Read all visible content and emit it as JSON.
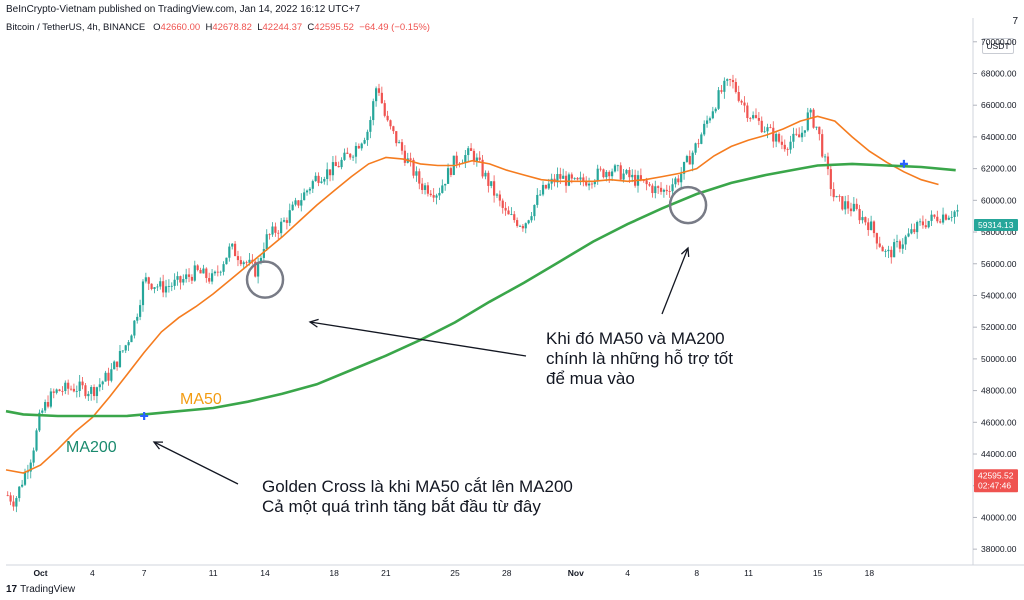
{
  "header": {
    "published": "BeInCrypto-Vietnam published on TradingView.com, Jan 14, 2022 16:12 UTC+7",
    "symbol": "Bitcoin / TetherUS, 4h, BINANCE",
    "open_label": "O",
    "open": "42660.00",
    "high_label": "H",
    "high": "42678.82",
    "low_label": "L",
    "low": "42244.37",
    "close_label": "C",
    "close": "42595.52",
    "change": "−64.49 (−0.15%)",
    "corner": "7",
    "currency": "USDT"
  },
  "colors": {
    "ma50": "#f57c1f",
    "ma200": "#3aa64a",
    "up": "#26a69a",
    "down": "#ef5350",
    "circle": "#787b86",
    "label_ma50": "#f39c12",
    "label_ma200": "#1a8a6e",
    "badge_red": "#ef5350",
    "badge_teal": "#26a69a"
  },
  "annotations": {
    "ma50_label": "MA50",
    "ma200_label": "MA200",
    "support_line1": "Khi đó MA50 và MA200",
    "support_line2": "chính là những hỗ trợ tốt",
    "support_line3": "để mua vào",
    "golden_line1": "Golden Cross là khi MA50 cắt lên MA200",
    "golden_line2": "Cả một quá trình tăng bắt đầu từ đây"
  },
  "price_badges": {
    "current": "42595.52",
    "countdown": "02:47:46",
    "ma_value": "59314.13"
  },
  "footer": {
    "logo_mark": "17",
    "logo_text": "TradingView"
  },
  "chart_data": {
    "type": "line",
    "y_ticks": [
      38000,
      40000,
      42000,
      44000,
      46000,
      48000,
      50000,
      52000,
      54000,
      56000,
      58000,
      60000,
      62000,
      64000,
      66000,
      68000,
      70000
    ],
    "y_tick_labels": [
      "38000.00",
      "40000.00",
      "42000.00",
      "44000.00",
      "46000.00",
      "48000.00",
      "50000.00",
      "52000.00",
      "54000.00",
      "56000.00",
      "58000.00",
      "60000.00",
      "62000.00",
      "64000.00",
      "66000.00",
      "68000.00",
      "70000.00"
    ],
    "ylim": [
      37000,
      71500
    ],
    "x_ticks": [
      {
        "label": "Oct",
        "day": 1
      },
      {
        "label": "4",
        "day": 4
      },
      {
        "label": "7",
        "day": 7
      },
      {
        "label": "11",
        "day": 11
      },
      {
        "label": "14",
        "day": 14
      },
      {
        "label": "18",
        "day": 18
      },
      {
        "label": "21",
        "day": 21
      },
      {
        "label": "25",
        "day": 25
      },
      {
        "label": "28",
        "day": 28
      },
      {
        "label": "Nov",
        "day": 32
      },
      {
        "label": "4",
        "day": 35
      },
      {
        "label": "8",
        "day": 39
      },
      {
        "label": "11",
        "day": 42
      },
      {
        "label": "15",
        "day": 46
      },
      {
        "label": "18",
        "day": 49
      }
    ],
    "xlim": [
      -1,
      55
    ],
    "price_path": [
      [
        -1,
        41500
      ],
      [
        -0.5,
        41000
      ],
      [
        0,
        42500
      ],
      [
        0.5,
        44000
      ],
      [
        1,
        46500
      ],
      [
        1.5,
        47500
      ],
      [
        2,
        48000
      ],
      [
        3,
        48200
      ],
      [
        4,
        48000
      ],
      [
        5,
        49000
      ],
      [
        5.5,
        50000
      ],
      [
        6,
        51000
      ],
      [
        6.5,
        52500
      ],
      [
        7,
        55000
      ],
      [
        8,
        54500
      ],
      [
        9,
        54800
      ],
      [
        10,
        55500
      ],
      [
        11,
        55000
      ],
      [
        12,
        57000
      ],
      [
        13,
        56000
      ],
      [
        13.5,
        55500
      ],
      [
        14,
        57500
      ],
      [
        15,
        58500
      ],
      [
        16,
        60000
      ],
      [
        17,
        61500
      ],
      [
        18,
        62000
      ],
      [
        19,
        63000
      ],
      [
        20,
        64500
      ],
      [
        20.5,
        67500
      ],
      [
        21,
        65000
      ],
      [
        22,
        63000
      ],
      [
        23,
        61000
      ],
      [
        24,
        60500
      ],
      [
        25,
        62500
      ],
      [
        26,
        63000
      ],
      [
        27,
        61000
      ],
      [
        28,
        59000
      ],
      [
        29,
        58500
      ],
      [
        30,
        60500
      ],
      [
        31,
        61500
      ],
      [
        32,
        61000
      ],
      [
        33,
        61500
      ],
      [
        34,
        62000
      ],
      [
        35,
        61500
      ],
      [
        36,
        61000
      ],
      [
        37,
        60500
      ],
      [
        38,
        61500
      ],
      [
        39,
        63500
      ],
      [
        40,
        66000
      ],
      [
        40.5,
        67000
      ],
      [
        41,
        67500
      ],
      [
        42,
        65500
      ],
      [
        43,
        64500
      ],
      [
        44,
        63500
      ],
      [
        45,
        64000
      ],
      [
        45.5,
        65500
      ],
      [
        46,
        64500
      ],
      [
        46.5,
        62000
      ],
      [
        47,
        60000
      ],
      [
        48,
        59500
      ],
      [
        49,
        58500
      ],
      [
        50,
        56500
      ],
      [
        51,
        57500
      ],
      [
        52,
        58500
      ],
      [
        53,
        59000
      ],
      [
        54,
        59300
      ]
    ],
    "series": [
      {
        "name": "MA50",
        "points": [
          [
            -1,
            43000
          ],
          [
            0,
            42800
          ],
          [
            1,
            43300
          ],
          [
            2,
            44300
          ],
          [
            3,
            45400
          ],
          [
            4,
            46300
          ],
          [
            5,
            47600
          ],
          [
            6,
            49000
          ],
          [
            7,
            50400
          ],
          [
            8,
            51700
          ],
          [
            9,
            52600
          ],
          [
            10,
            53300
          ],
          [
            11,
            54100
          ],
          [
            12,
            55000
          ],
          [
            13,
            55900
          ],
          [
            14,
            56800
          ],
          [
            15,
            57700
          ],
          [
            16,
            58700
          ],
          [
            17,
            59700
          ],
          [
            18,
            60600
          ],
          [
            19,
            61500
          ],
          [
            20,
            62300
          ],
          [
            21,
            62700
          ],
          [
            22,
            62600
          ],
          [
            23,
            62300
          ],
          [
            24,
            62200
          ],
          [
            25,
            62200
          ],
          [
            26,
            62500
          ],
          [
            27,
            62300
          ],
          [
            28,
            61900
          ],
          [
            29,
            61600
          ],
          [
            30,
            61300
          ],
          [
            31,
            61200
          ],
          [
            32,
            61200
          ],
          [
            33,
            61200
          ],
          [
            34,
            61300
          ],
          [
            35,
            61200
          ],
          [
            36,
            61300
          ],
          [
            37,
            61500
          ],
          [
            38,
            61700
          ],
          [
            39,
            62000
          ],
          [
            40,
            62800
          ],
          [
            41,
            63400
          ],
          [
            42,
            63800
          ],
          [
            43,
            64100
          ],
          [
            44,
            64500
          ],
          [
            45,
            65000
          ],
          [
            46,
            65300
          ],
          [
            47,
            65000
          ],
          [
            48,
            64000
          ],
          [
            49,
            63100
          ],
          [
            50,
            62400
          ],
          [
            51,
            61800
          ],
          [
            52,
            61300
          ],
          [
            53,
            61000
          ]
        ]
      },
      {
        "name": "MA200",
        "points": [
          [
            -1,
            46700
          ],
          [
            0,
            46500
          ],
          [
            2,
            46400
          ],
          [
            4,
            46400
          ],
          [
            6,
            46400
          ],
          [
            7,
            46500
          ],
          [
            9,
            46700
          ],
          [
            11,
            46900
          ],
          [
            13,
            47300
          ],
          [
            15,
            47800
          ],
          [
            17,
            48400
          ],
          [
            19,
            49300
          ],
          [
            21,
            50200
          ],
          [
            23,
            51200
          ],
          [
            25,
            52300
          ],
          [
            27,
            53600
          ],
          [
            29,
            54800
          ],
          [
            31,
            56100
          ],
          [
            33,
            57400
          ],
          [
            35,
            58500
          ],
          [
            37,
            59500
          ],
          [
            39,
            60400
          ],
          [
            41,
            61100
          ],
          [
            43,
            61600
          ],
          [
            45,
            62000
          ],
          [
            46,
            62200
          ],
          [
            48,
            62300
          ],
          [
            50,
            62200
          ],
          [
            52,
            62100
          ],
          [
            54,
            61900
          ]
        ]
      }
    ],
    "cross_markers": [
      [
        7,
        46400
      ],
      [
        51,
        62300
      ]
    ],
    "circles": [
      [
        14,
        55000
      ],
      [
        38.5,
        59700
      ]
    ]
  }
}
